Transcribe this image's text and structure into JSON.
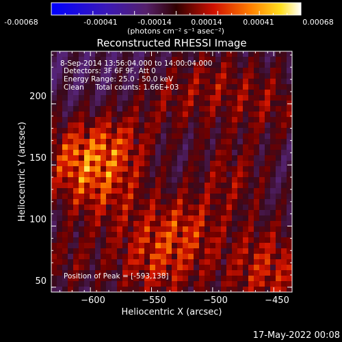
{
  "colorbar": {
    "ticks": [
      "-0.00068",
      "-0.00041",
      "-0.00014",
      "0.00014",
      "0.00041",
      "0.00068"
    ],
    "units": "(photons cm⁻² s⁻¹ asec⁻²)"
  },
  "title": "Reconstructed RHESSI Image",
  "annotations": {
    "time": "8-Sep-2014 13:56:04.000 to 14:00:04.000",
    "detectors": "Detectors: 3F 6F 9F, Att 0",
    "energy": "Energy Range: 25.0 - 50.0 keV",
    "method": "Clean     Total counts: 1.66E+03",
    "peak": "Position of Peak = [-593,138]"
  },
  "timestamp": "17-May-2022 00:08",
  "chart_data": {
    "type": "heatmap",
    "title": "Reconstructed RHESSI Image",
    "xlabel": "Heliocentric X (arcsec)",
    "ylabel": "Heliocentric Y (arcsec)",
    "xlim": [
      -632,
      -435
    ],
    "ylim": [
      46,
      243
    ],
    "x_ticks": [
      -600,
      -550,
      -500,
      -450
    ],
    "y_ticks": [
      50,
      100,
      150,
      200
    ],
    "x_tick_labels": [
      "−600",
      "−550",
      "−500",
      "−450"
    ],
    "y_tick_labels": [
      "50",
      "100",
      "150",
      "200"
    ],
    "colorbar_range": [
      -0.00068,
      0.00068
    ],
    "colormap": "blue-purple-red-yellow-white",
    "peak_position": [
      -593,
      138
    ]
  }
}
